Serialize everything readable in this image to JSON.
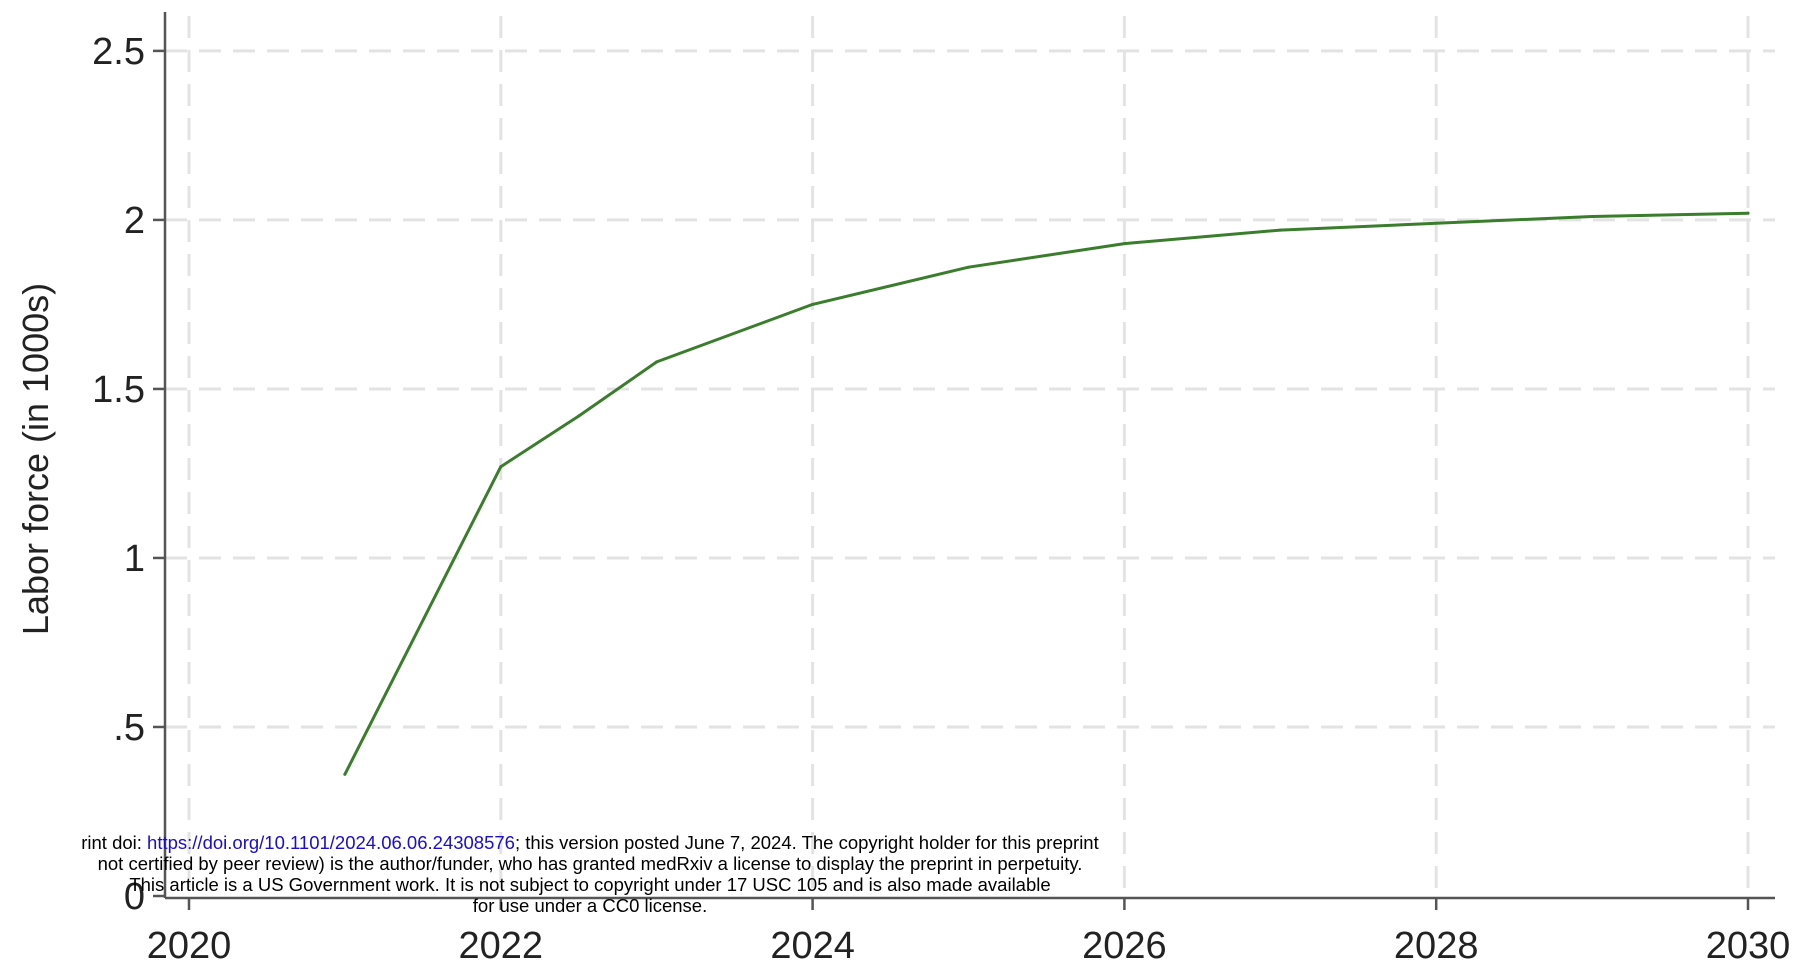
{
  "chart_data": {
    "type": "line",
    "title": "",
    "xlabel": "",
    "ylabel": "Labor force (in 1000s)",
    "xlim": [
      2020,
      2030
    ],
    "ylim": [
      0,
      2.55
    ],
    "x_ticks": [
      2020,
      2022,
      2024,
      2026,
      2028,
      2030
    ],
    "y_ticks": [
      0,
      0.5,
      1,
      1.5,
      2,
      2.5
    ],
    "x_tick_labels": [
      "2020",
      "2022",
      "2024",
      "2026",
      "2028",
      "2030"
    ],
    "y_tick_labels": [
      "0",
      ".5",
      "1",
      "1.5",
      "2",
      "2.5"
    ],
    "grid": true,
    "line_color": "#3a7d2c",
    "series": [
      {
        "x": [
          2021,
          2022,
          2022.5,
          2023,
          2024,
          2025,
          2026,
          2027,
          2028,
          2029,
          2030
        ],
        "values": [
          0.36,
          1.27,
          1.42,
          1.58,
          1.75,
          1.86,
          1.93,
          1.97,
          1.99,
          2.01,
          2.02
        ]
      }
    ]
  },
  "notice": {
    "line1_before": "rint doi: ",
    "line1_link": "https://doi.org/10.1101/2024.06.06.24308576",
    "line1_after": "; this version posted June 7, 2024. The copyright holder for this preprint",
    "line2": "not certified by peer review) is the author/funder, who has granted medRxiv a license to display the preprint in perpetuity.",
    "line3": "This article is a US Government work. It is not subject to copyright under 17 USC 105 and is also made available",
    "line4": "for use under a CC0 license."
  }
}
